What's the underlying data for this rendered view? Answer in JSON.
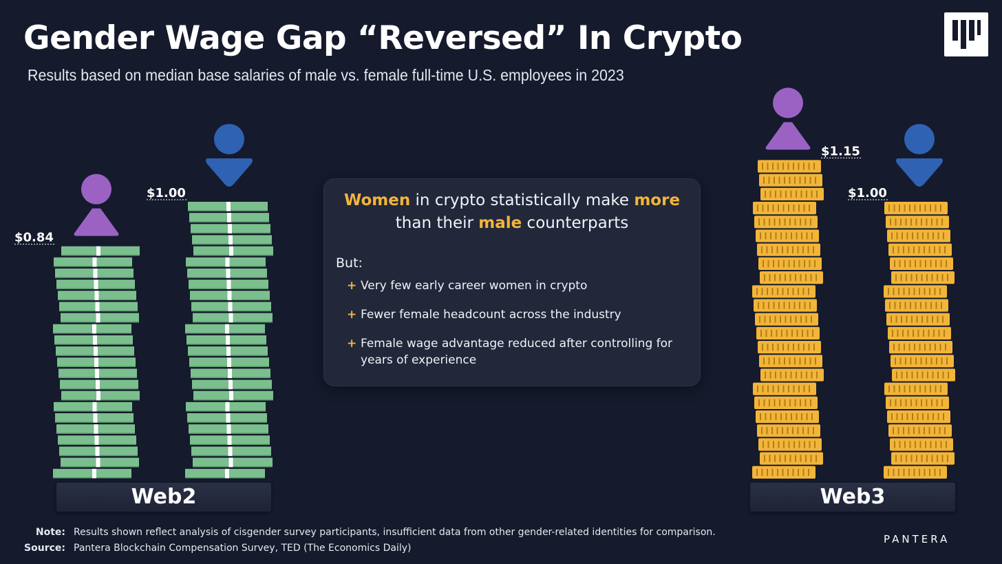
{
  "header": {
    "title": "Gender Wage Gap “Reversed” In Crypto",
    "subtitle": "Results based on median base salaries of male vs. female full-time U.S. employees in 2023"
  },
  "callout": {
    "head_parts": [
      {
        "text": "Women",
        "highlight": true
      },
      {
        "text": " in crypto statistically make ",
        "highlight": false
      },
      {
        "text": "more",
        "highlight": true
      },
      {
        "text": " than their ",
        "highlight": false
      },
      {
        "text": "male",
        "highlight": true
      },
      {
        "text": " counterparts",
        "highlight": false
      }
    ],
    "but_label": "But:",
    "bullets": [
      "Very few early career women in crypto",
      "Fewer female headcount across the industry",
      "Female wage advantage reduced after controlling for years of experience"
    ]
  },
  "footer": {
    "note_label": "Note:",
    "note_text": "Results shown reflect analysis of cisgender survey participants, insufficient data from other gender-related identities for comparison.",
    "source_label": "Source:",
    "source_text": "Pantera Blockchain Compensation Survey, TED (The Economics Daily)",
    "brand": "PANTERA"
  },
  "colors": {
    "background": "#151a2c",
    "female_icon": "#9b62c4",
    "male_icon": "#2f62b3",
    "cash_stack": "#7cbf8e",
    "coin_stack": "#f2b53a",
    "highlight": "#f2b53a"
  },
  "icons": {
    "female": "female-person-icon",
    "male": "male-person-icon",
    "logo": "pantera-logo-icon"
  },
  "chart_data": {
    "type": "bar",
    "categories": [
      "Web2",
      "Web3"
    ],
    "series": [
      {
        "values": [
          0.84,
          1.15
        ],
        "labels": [
          "$0.84",
          "$1.15"
        ],
        "icon": "female-person-icon"
      },
      {
        "values": [
          1.0,
          1.0
        ],
        "labels": [
          "$1.00",
          "$1.00"
        ],
        "icon": "male-person-icon"
      }
    ],
    "category_marks": [
      "cash-bills",
      "gold-coins"
    ]
  }
}
